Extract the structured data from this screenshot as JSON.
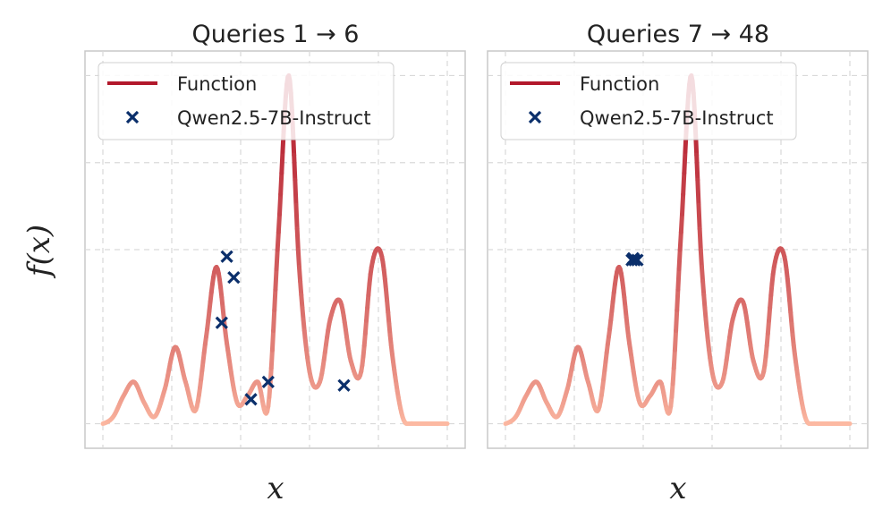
{
  "ylabel": "f(x)",
  "xlabel": "x",
  "colors": {
    "function_dark": "#b2182b",
    "function_light": "#fcb9a2",
    "marker": "#0b2f6b",
    "grid": "#d9d9d9",
    "frame": "#c8c8c8"
  },
  "legend": {
    "function_label": "Function",
    "marker_label": "Qwen2.5-7B-Instruct"
  },
  "chart_data": [
    {
      "type": "line",
      "title": "Queries 1 → 6",
      "xlabel": "x",
      "ylabel": "f(x)",
      "xlim": [
        0,
        1
      ],
      "ylim": [
        -0.05,
        1.05
      ],
      "grid": true,
      "legend_position": "top-left",
      "series": [
        {
          "name": "Function",
          "x": [
            0.0,
            0.03,
            0.06,
            0.09,
            0.12,
            0.15,
            0.18,
            0.21,
            0.24,
            0.27,
            0.3,
            0.33,
            0.36,
            0.39,
            0.42,
            0.45,
            0.48,
            0.51,
            0.54,
            0.57,
            0.6,
            0.63,
            0.66,
            0.69,
            0.72,
            0.75,
            0.78,
            0.81,
            0.84,
            0.87,
            0.9,
            0.93,
            0.96,
            1.0
          ],
          "y": [
            0.0,
            0.02,
            0.08,
            0.12,
            0.06,
            0.02,
            0.1,
            0.22,
            0.12,
            0.04,
            0.25,
            0.45,
            0.23,
            0.06,
            0.08,
            0.12,
            0.05,
            0.55,
            1.0,
            0.45,
            0.15,
            0.12,
            0.3,
            0.35,
            0.18,
            0.15,
            0.45,
            0.48,
            0.2,
            0.02,
            0.0,
            0.0,
            0.0,
            0.0
          ]
        },
        {
          "name": "Qwen2.5-7B-Instruct",
          "markers": true,
          "x": [
            0.36,
            0.38,
            0.345,
            0.43,
            0.48,
            0.7
          ],
          "y": [
            0.48,
            0.42,
            0.29,
            0.07,
            0.12,
            0.11
          ]
        }
      ]
    },
    {
      "type": "line",
      "title": "Queries 7 → 48",
      "xlabel": "x",
      "ylabel": "f(x)",
      "xlim": [
        0,
        1
      ],
      "ylim": [
        -0.05,
        1.05
      ],
      "grid": true,
      "legend_position": "top-left",
      "series": [
        {
          "name": "Function",
          "x": [
            0.0,
            0.03,
            0.06,
            0.09,
            0.12,
            0.15,
            0.18,
            0.21,
            0.24,
            0.27,
            0.3,
            0.33,
            0.36,
            0.39,
            0.42,
            0.45,
            0.48,
            0.51,
            0.54,
            0.57,
            0.6,
            0.63,
            0.66,
            0.69,
            0.72,
            0.75,
            0.78,
            0.81,
            0.84,
            0.87,
            0.9,
            0.93,
            0.96,
            1.0
          ],
          "y": [
            0.0,
            0.02,
            0.08,
            0.12,
            0.06,
            0.02,
            0.1,
            0.22,
            0.12,
            0.04,
            0.25,
            0.45,
            0.23,
            0.06,
            0.08,
            0.12,
            0.05,
            0.55,
            1.0,
            0.45,
            0.15,
            0.12,
            0.3,
            0.35,
            0.18,
            0.15,
            0.45,
            0.48,
            0.2,
            0.02,
            0.0,
            0.0,
            0.0,
            0.0
          ]
        },
        {
          "name": "Qwen2.5-7B-Instruct",
          "markers": true,
          "x": [
            0.367,
            0.375,
            0.383,
            0.371
          ],
          "y": [
            0.47,
            0.47,
            0.47,
            0.475
          ]
        }
      ]
    }
  ]
}
